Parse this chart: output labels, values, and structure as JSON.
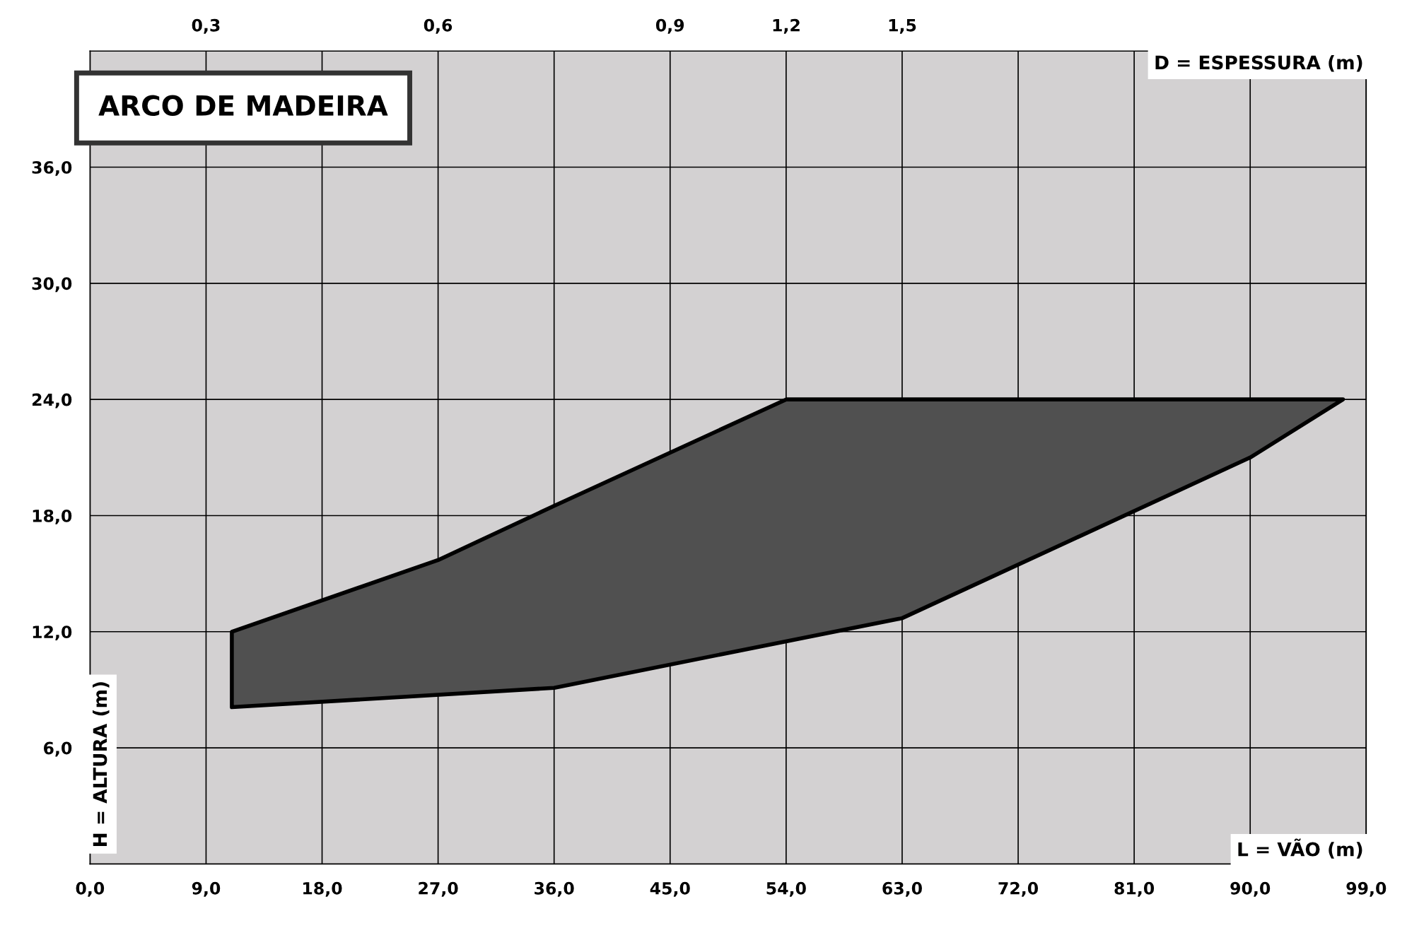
{
  "chart_data": {
    "type": "area",
    "title": "ARCO DE MADEIRA",
    "xlabel": "L = VÃO (m)",
    "ylabel": "H = ALTURA (m)",
    "x2label": "D = ESPESSURA (m)",
    "xlim": [
      0,
      99
    ],
    "xticks": [
      {
        "value": 0,
        "label": "0,0"
      },
      {
        "value": 9,
        "label": "9,0"
      },
      {
        "value": 18,
        "label": "18,0"
      },
      {
        "value": 27,
        "label": "27,0"
      },
      {
        "value": 36,
        "label": "36,0"
      },
      {
        "value": 45,
        "label": "45,0"
      },
      {
        "value": 54,
        "label": "54,0"
      },
      {
        "value": 63,
        "label": "63,0"
      },
      {
        "value": 72,
        "label": "72,0"
      },
      {
        "value": 81,
        "label": "81,0"
      },
      {
        "value": 90,
        "label": "90,0"
      },
      {
        "value": 99,
        "label": "99,0"
      }
    ],
    "annotations": [
      "0,3",
      "0,6",
      "0,9",
      "1,2",
      "1,5"
    ],
    "ylim": [
      0,
      42
    ],
    "yticks": [
      {
        "value": 6,
        "label": "6,0"
      },
      {
        "value": 12,
        "label": "12,0"
      },
      {
        "value": 18,
        "label": "18,0"
      },
      {
        "value": 24,
        "label": "24,0"
      },
      {
        "value": 30,
        "label": "30,0"
      },
      {
        "value": 36,
        "label": "36,0"
      }
    ],
    "grid": true,
    "legend": false,
    "series": [
      {
        "color": "#505050",
        "x": [
          11,
          27,
          36,
          54,
          97.2,
          90,
          63,
          36,
          11
        ],
        "values": [
          12,
          15.7,
          18.5,
          24,
          24,
          21.0,
          12.7,
          9.1,
          8.1
        ]
      }
    ]
  }
}
